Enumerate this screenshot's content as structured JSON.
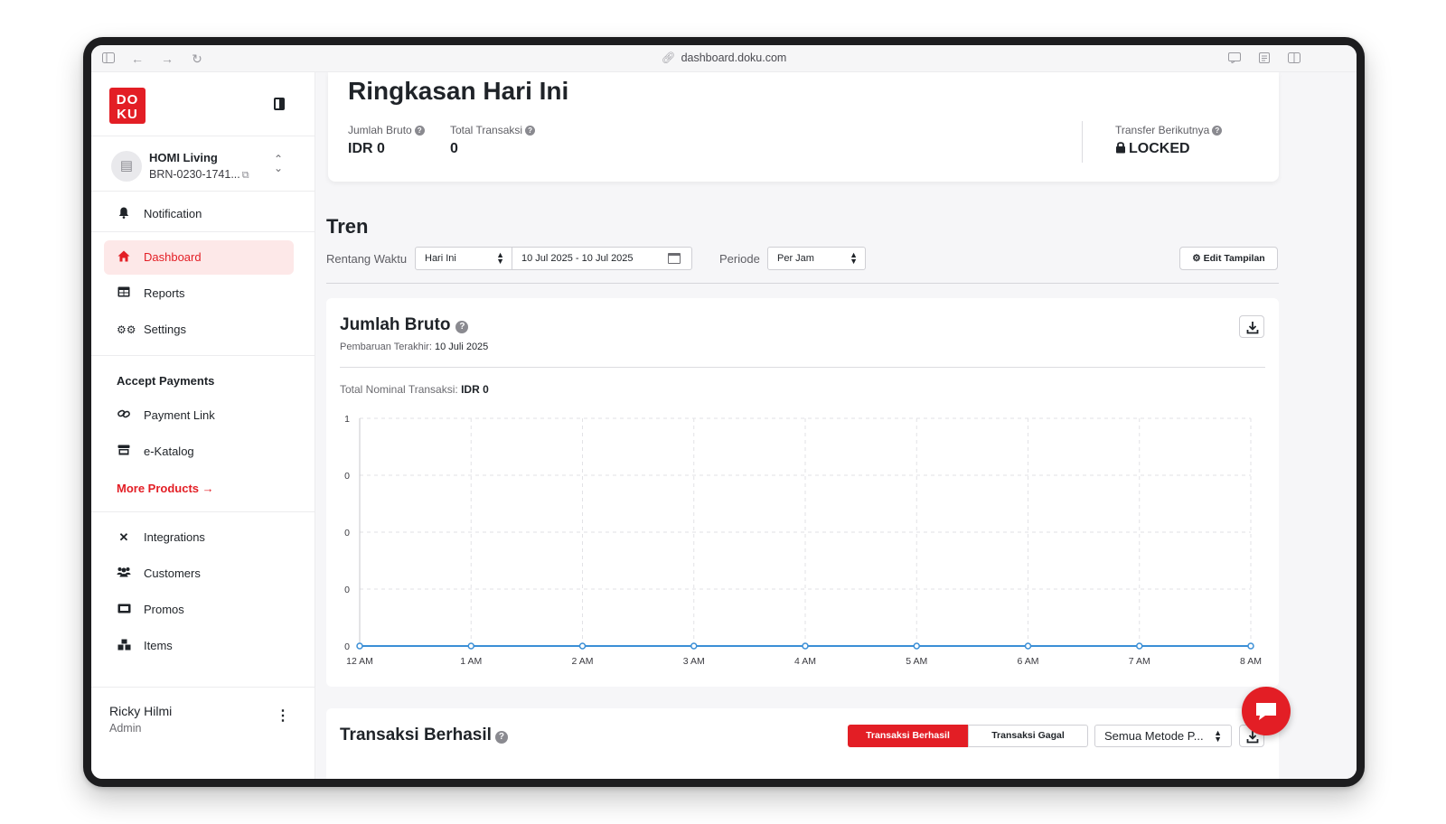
{
  "browser": {
    "url": "dashboard.doku.com"
  },
  "sidebar": {
    "logo_text": "DOKU",
    "account": {
      "name": "HOMI Living",
      "id": "BRN-0230-1741..."
    },
    "nav_top": [
      {
        "label": "Notification",
        "icon": "bell-icon"
      },
      {
        "label": "Dashboard",
        "icon": "home-icon",
        "active": true
      },
      {
        "label": "Reports",
        "icon": "table-icon"
      },
      {
        "label": "Settings",
        "icon": "gears-icon"
      }
    ],
    "section_title": "Accept Payments",
    "nav_payments": [
      {
        "label": "Payment Link",
        "icon": "link-icon"
      },
      {
        "label": "e-Katalog",
        "icon": "store-icon"
      }
    ],
    "more_products": "More Products →",
    "nav_bottom": [
      {
        "label": "Integrations",
        "icon": "tools-icon"
      },
      {
        "label": "Customers",
        "icon": "users-icon"
      },
      {
        "label": "Promos",
        "icon": "ticket-icon"
      },
      {
        "label": "Items",
        "icon": "boxes-icon"
      }
    ],
    "user": {
      "name": "Ricky Hilmi",
      "role": "Admin"
    }
  },
  "summary": {
    "title": "Ringkasan Hari Ini",
    "gross_label": "Jumlah Bruto",
    "gross_value": "IDR 0",
    "tx_label": "Total Transaksi",
    "tx_value": "0",
    "transfer_label": "Transfer Berikutnya",
    "transfer_value": "LOCKED"
  },
  "trend": {
    "title": "Tren",
    "range_label": "Rentang Waktu",
    "range_value": "Hari Ini",
    "date_value": "10 Jul 2025 - 10 Jul 2025",
    "period_label": "Periode",
    "period_value": "Per Jam",
    "edit_button": "Edit Tampilan"
  },
  "gross_chart": {
    "title": "Jumlah Bruto",
    "updated_label": "Pembaruan Terakhir:",
    "updated_value": "10 Juli 2025",
    "total_label": "Total Nominal Transaksi:",
    "total_value": "IDR 0"
  },
  "chart_data": {
    "type": "line",
    "categories": [
      "12 AM",
      "1 AM",
      "2 AM",
      "3 AM",
      "4 AM",
      "5 AM",
      "6 AM",
      "7 AM",
      "8 AM"
    ],
    "series": [
      {
        "values": [
          0,
          0,
          0,
          0,
          0,
          0,
          0,
          0,
          0
        ],
        "color": "#3b8fd6"
      }
    ],
    "y_tick_labels": [
      "1",
      "0",
      "0",
      "0",
      "0"
    ],
    "ylim": [
      0,
      1
    ],
    "grid": true
  },
  "transactions": {
    "title": "Transaksi Berhasil",
    "tab_success": "Transaksi Berhasil",
    "tab_failed": "Transaksi Gagal",
    "method_value": "Semua Metode P..."
  },
  "colors": {
    "brand": "#e31e25",
    "line": "#3b8fd6",
    "active_bg": "#fde8e8"
  }
}
